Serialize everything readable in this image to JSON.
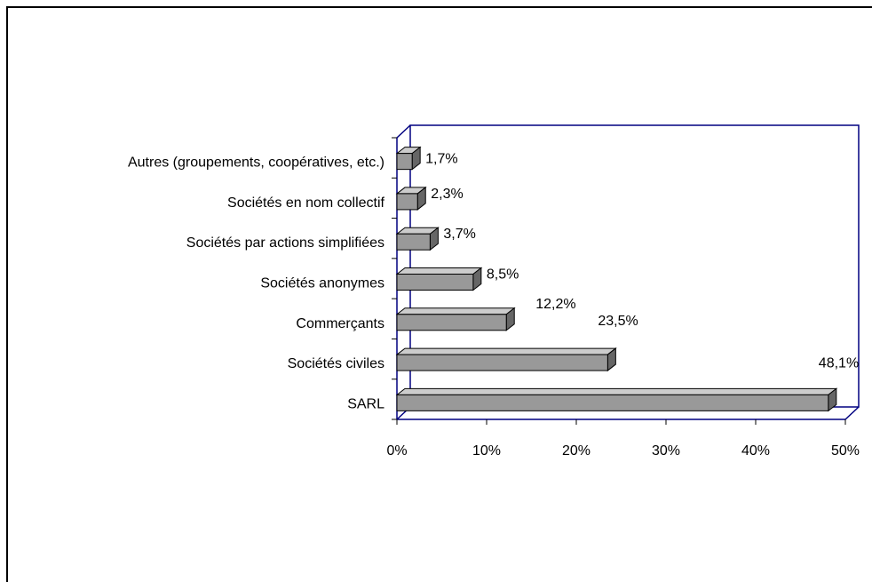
{
  "chart_data": {
    "type": "bar",
    "orientation": "horizontal",
    "style": "3d",
    "categories": [
      "SARL",
      "Sociétés civiles",
      "Commerçants",
      "Sociétés anonymes",
      "Sociétés par actions simplifiées",
      "Sociétés en nom collectif",
      "Autres (groupements, coopératives, etc.)"
    ],
    "values": [
      48.1,
      23.5,
      12.2,
      8.5,
      3.7,
      2.3,
      1.7
    ],
    "data_labels": [
      "48,1%",
      "23,5%",
      "12,2%",
      "8,5%",
      "3,7%",
      "2,3%",
      "1,7%"
    ],
    "xlim": [
      0,
      50
    ],
    "xticks": [
      "0%",
      "10%",
      "20%",
      "30%",
      "40%",
      "50%"
    ],
    "grid": false,
    "legend": "none",
    "colors": {
      "bar_front": "#999999",
      "bar_top": "#cccccc",
      "bar_side": "#666666",
      "axis": "#000080"
    }
  }
}
